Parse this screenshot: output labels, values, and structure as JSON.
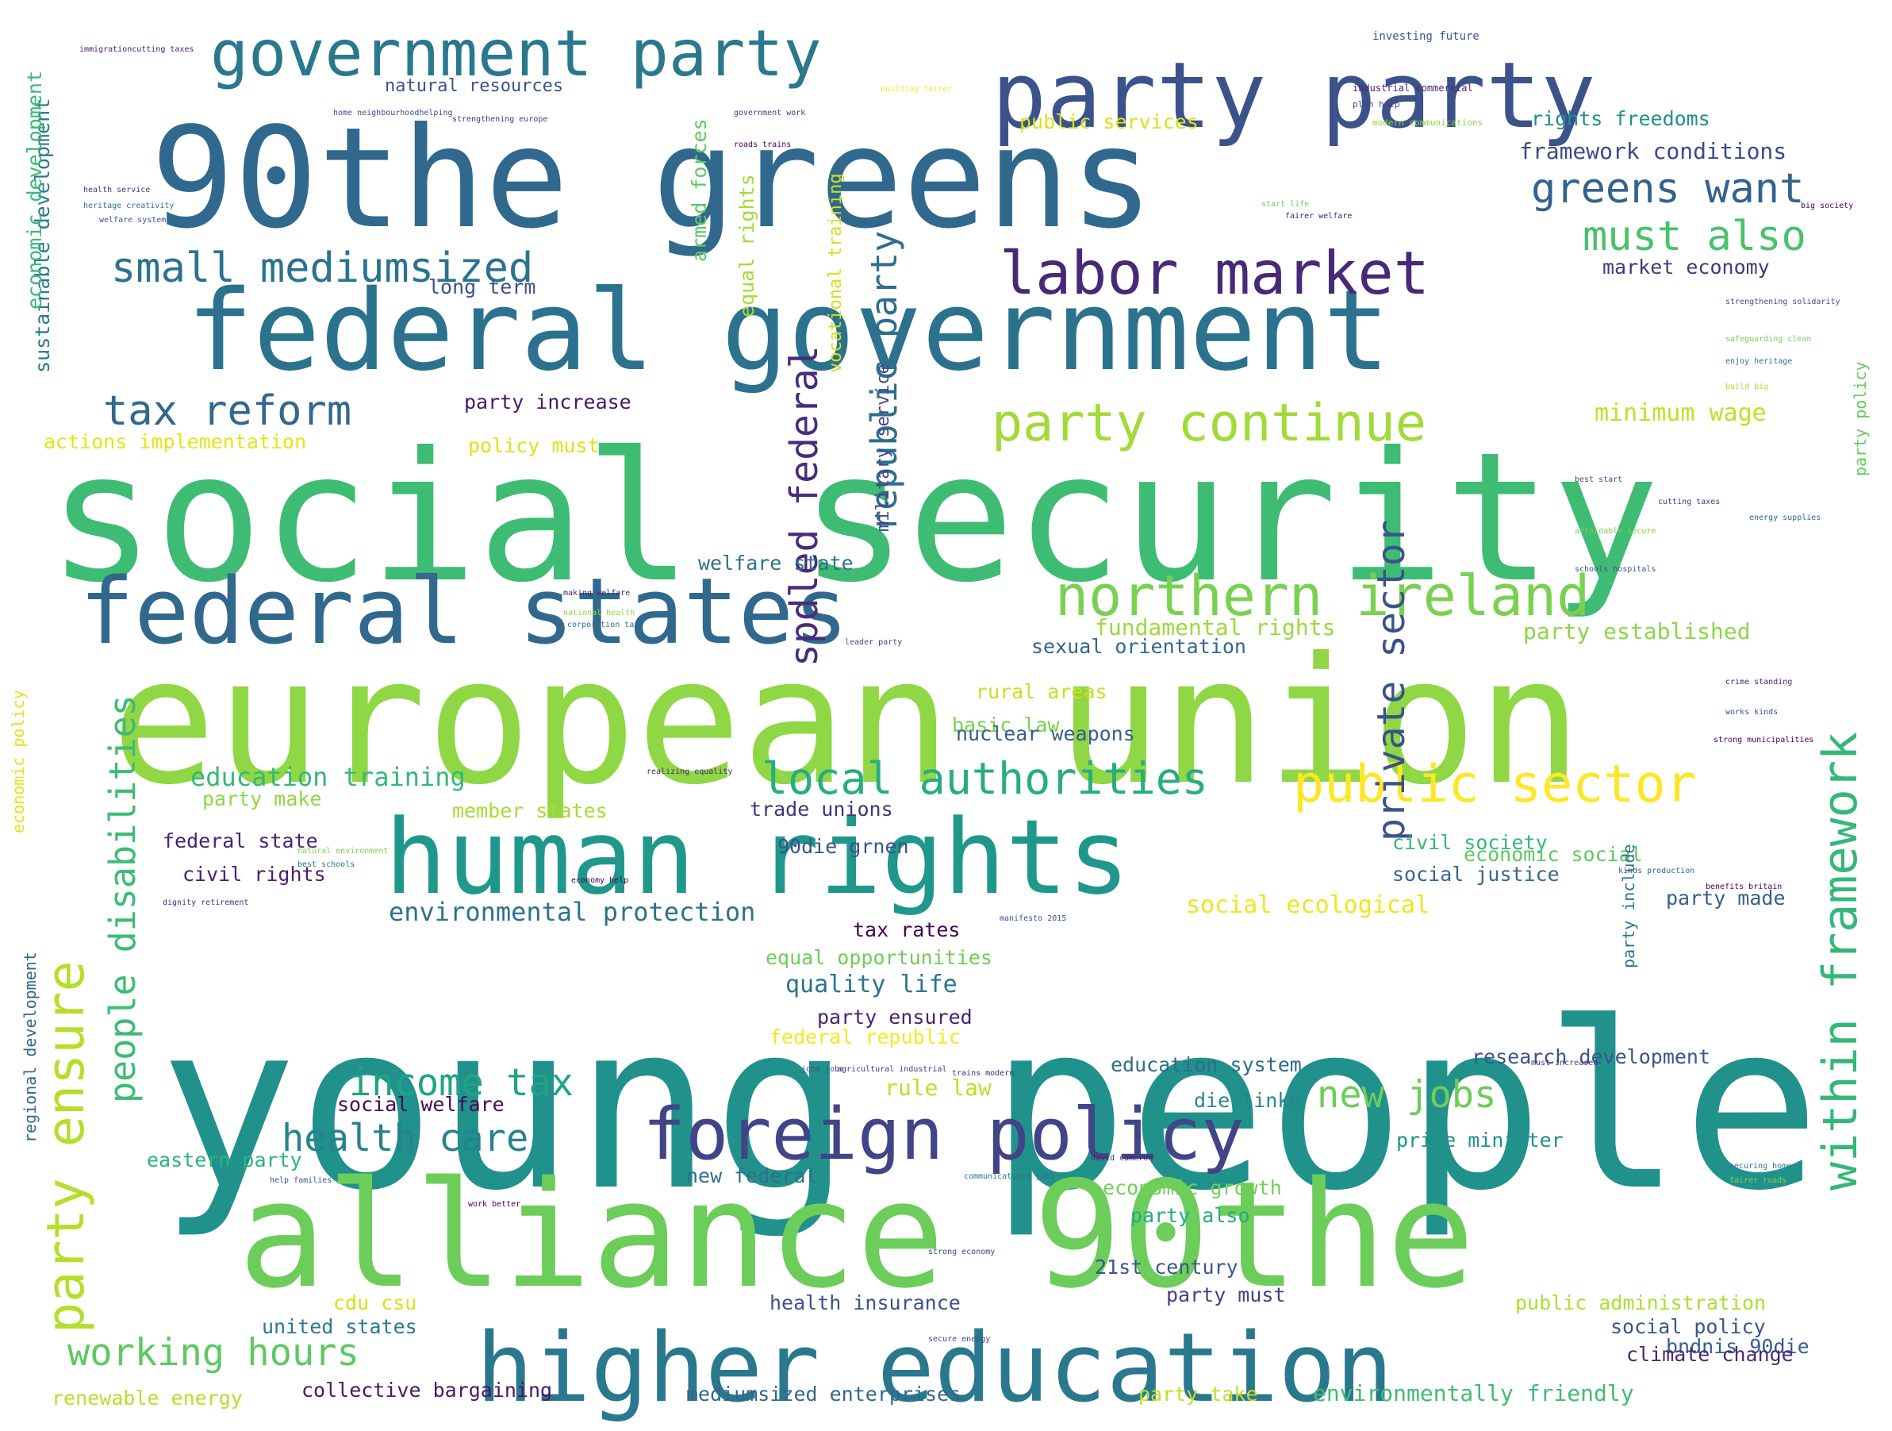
{
  "wordcloud": {
    "colormap": "viridis",
    "background": "#ffffff",
    "phrases": [
      {
        "text": "young people",
        "color": "#21918c"
      },
      {
        "text": "social security",
        "color": "#3fbc73"
      },
      {
        "text": "european union",
        "color": "#8fd744"
      },
      {
        "text": "alliance 90the",
        "color": "#6ccd5a"
      },
      {
        "text": "90the greens",
        "color": "#31688e"
      },
      {
        "text": "federal government",
        "color": "#2c728e"
      },
      {
        "text": "human rights",
        "color": "#1f988b"
      },
      {
        "text": "higher education",
        "color": "#2a788e"
      },
      {
        "text": "party party",
        "color": "#3b528b"
      },
      {
        "text": "federal states",
        "color": "#31688e"
      },
      {
        "text": "foreign policy",
        "color": "#414487"
      },
      {
        "text": "government party",
        "color": "#2a788e"
      },
      {
        "text": "labor market",
        "color": "#482878"
      },
      {
        "text": "northern ireland",
        "color": "#7ad151"
      },
      {
        "text": "party continue",
        "color": "#a2da37"
      },
      {
        "text": "public sector",
        "color": "#fde725"
      },
      {
        "text": "local authorities",
        "color": "#27ad81"
      },
      {
        "text": "small mediumsized",
        "color": "#2c728e"
      },
      {
        "text": "tax reform",
        "color": "#31688e"
      },
      {
        "text": "greens want",
        "color": "#33638d"
      },
      {
        "text": "must also",
        "color": "#4ac16d"
      },
      {
        "text": "within framework",
        "color": "#35b779"
      },
      {
        "text": "party ensure",
        "color": "#b5de2b"
      },
      {
        "text": "republic party",
        "color": "#2e6e8e"
      },
      {
        "text": "spdled federal",
        "color": "#472d7b"
      },
      {
        "text": "private sector",
        "color": "#3b528b"
      },
      {
        "text": "income tax",
        "color": "#20a486"
      },
      {
        "text": "health care",
        "color": "#25838e"
      },
      {
        "text": "working hours",
        "color": "#5ec962"
      },
      {
        "text": "new jobs",
        "color": "#6ccd5a"
      },
      {
        "text": "people disabilities",
        "color": "#3dbc74"
      },
      {
        "text": "education training",
        "color": "#35b779"
      },
      {
        "text": "environmental protection",
        "color": "#2c728e"
      },
      {
        "text": "minimum wage",
        "color": "#c2df23"
      },
      {
        "text": "fundamental rights",
        "color": "#9bd93c"
      },
      {
        "text": "party established",
        "color": "#8bd646"
      },
      {
        "text": "sexual orientation",
        "color": "#31688e"
      },
      {
        "text": "rural areas",
        "color": "#c8e020"
      },
      {
        "text": "basic law",
        "color": "#7ad151"
      },
      {
        "text": "nuclear weapons",
        "color": "#355f8d"
      },
      {
        "text": "welfare state",
        "color": "#2c728e"
      },
      {
        "text": "framework conditions",
        "color": "#3e4989"
      },
      {
        "text": "rights freedoms",
        "color": "#218f8d"
      },
      {
        "text": "market economy",
        "color": "#453781"
      },
      {
        "text": "public services",
        "color": "#d8e219"
      },
      {
        "text": "natural resources",
        "color": "#3b528b"
      },
      {
        "text": "armed forces",
        "color": "#5ec962"
      },
      {
        "text": "equal rights",
        "color": "#a5db36"
      },
      {
        "text": "vocational training",
        "color": "#d2e21b"
      },
      {
        "text": "military service",
        "color": "#404688"
      },
      {
        "text": "long term",
        "color": "#3b528b"
      },
      {
        "text": "party increase",
        "color": "#48186a"
      },
      {
        "text": "policy must",
        "color": "#dde318"
      },
      {
        "text": "actions implementation",
        "color": "#e5e419"
      },
      {
        "text": "sustainable development",
        "color": "#2a788e"
      },
      {
        "text": "economic development",
        "color": "#3aba76"
      },
      {
        "text": "party make",
        "color": "#8fd744"
      },
      {
        "text": "member states",
        "color": "#a8db34"
      },
      {
        "text": "trade unions",
        "color": "#46327e"
      },
      {
        "text": "federal state",
        "color": "#482475"
      },
      {
        "text": "civil rights",
        "color": "#481f70"
      },
      {
        "text": "civil society",
        "color": "#35b779"
      },
      {
        "text": "90die grnen",
        "color": "#3b528b"
      },
      {
        "text": "economic social",
        "color": "#5ec962"
      },
      {
        "text": "social justice",
        "color": "#31688e"
      },
      {
        "text": "party made",
        "color": "#355f8d"
      },
      {
        "text": "social ecological",
        "color": "#f1e51d"
      },
      {
        "text": "tax rates",
        "color": "#440154"
      },
      {
        "text": "equal opportunities",
        "color": "#6ece58"
      },
      {
        "text": "quality life",
        "color": "#2c728e"
      },
      {
        "text": "party ensured",
        "color": "#482475"
      },
      {
        "text": "federal republic",
        "color": "#f8e621"
      },
      {
        "text": "education system",
        "color": "#2f6c8e"
      },
      {
        "text": "research development",
        "color": "#3a548c"
      },
      {
        "text": "rule law",
        "color": "#bddf26"
      },
      {
        "text": "social welfare",
        "color": "#46085c"
      },
      {
        "text": "die linke",
        "color": "#24878e"
      },
      {
        "text": "prime minister",
        "color": "#20928c"
      },
      {
        "text": "eastern party",
        "color": "#2eb37c"
      },
      {
        "text": "new federal",
        "color": "#2d718e"
      },
      {
        "text": "economic growth",
        "color": "#73d056"
      },
      {
        "text": "party also",
        "color": "#24aa83"
      },
      {
        "text": "21st century",
        "color": "#38588c"
      },
      {
        "text": "party must",
        "color": "#424086"
      },
      {
        "text": "health insurance",
        "color": "#3b528b"
      },
      {
        "text": "cdu csu",
        "color": "#d5e21a"
      },
      {
        "text": "united states",
        "color": "#2a788e"
      },
      {
        "text": "public administration",
        "color": "#b0dd2f"
      },
      {
        "text": "social policy",
        "color": "#39568c"
      },
      {
        "text": "bndnis 90die",
        "color": "#355f8d"
      },
      {
        "text": "climate change",
        "color": "#482878"
      },
      {
        "text": "renewable energy",
        "color": "#b8de29"
      },
      {
        "text": "collective bargaining",
        "color": "#481668"
      },
      {
        "text": "mediumsized enterprises",
        "color": "#31688e"
      },
      {
        "text": "party take",
        "color": "#c0df25"
      },
      {
        "text": "environmentally friendly",
        "color": "#3fbc73"
      },
      {
        "text": "regional development",
        "color": "#31688e"
      },
      {
        "text": "economic policy",
        "color": "#e2e418"
      },
      {
        "text": "party include",
        "color": "#2b748e"
      },
      {
        "text": "party policy",
        "color": "#65cb5e"
      },
      {
        "text": "investing future",
        "color": "#3b528b"
      },
      {
        "text": "industrial commercial",
        "color": "#482374"
      },
      {
        "text": "plan help",
        "color": "#404688"
      },
      {
        "text": "modern communications",
        "color": "#8fd744"
      },
      {
        "text": "immigrationcutting taxes",
        "color": "#482173"
      },
      {
        "text": "home neighbourhoodhelping",
        "color": "#3e4a89"
      },
      {
        "text": "strengthening europe",
        "color": "#443983"
      },
      {
        "text": "health service",
        "color": "#46327e"
      },
      {
        "text": "heritage creativity",
        "color": "#2a788e"
      },
      {
        "text": "welfare system",
        "color": "#3b528b"
      },
      {
        "text": "government work",
        "color": "#414487"
      },
      {
        "text": "roads trains",
        "color": "#440154"
      },
      {
        "text": "building fairer",
        "color": "#fde725"
      },
      {
        "text": "start life",
        "color": "#6ccd5a"
      },
      {
        "text": "fairer welfare",
        "color": "#482475"
      },
      {
        "text": "big society",
        "color": "#440154"
      },
      {
        "text": "strengthening solidarity",
        "color": "#3b528b"
      },
      {
        "text": "safeguarding clean",
        "color": "#73d056"
      },
      {
        "text": "enjoy heritage",
        "color": "#2c728e"
      },
      {
        "text": "build big",
        "color": "#b5de2b"
      },
      {
        "text": "best start",
        "color": "#404688"
      },
      {
        "text": "cutting taxes",
        "color": "#453781"
      },
      {
        "text": "affordable secure",
        "color": "#7ad151"
      },
      {
        "text": "energy supplies",
        "color": "#31688e"
      },
      {
        "text": "schools hospitals",
        "color": "#3b528b"
      },
      {
        "text": "making welfare",
        "color": "#482878"
      },
      {
        "text": "national health",
        "color": "#8fd744"
      },
      {
        "text": "corporation tax",
        "color": "#2c728e"
      },
      {
        "text": "leader party",
        "color": "#414487"
      },
      {
        "text": "crime standing",
        "color": "#482374"
      },
      {
        "text": "works kinds",
        "color": "#3b528b"
      },
      {
        "text": "strong municipalities",
        "color": "#440154"
      },
      {
        "text": "realizing equality",
        "color": "#482878"
      },
      {
        "text": "natural environment",
        "color": "#7ad151"
      },
      {
        "text": "best schools",
        "color": "#2c728e"
      },
      {
        "text": "economy help",
        "color": "#440154"
      },
      {
        "text": "dignity retirement",
        "color": "#46327e"
      },
      {
        "text": "kinds production",
        "color": "#31688e"
      },
      {
        "text": "benefits britain",
        "color": "#440154"
      },
      {
        "text": "manifesto 2015",
        "color": "#3b528b"
      },
      {
        "text": "david cameron",
        "color": "#482173"
      },
      {
        "text": "jobs jobs",
        "color": "#3b528b"
      },
      {
        "text": "agricultural industrial",
        "color": "#453781"
      },
      {
        "text": "trains modern",
        "color": "#482878"
      },
      {
        "text": "communications jobs",
        "color": "#2c728e"
      },
      {
        "text": "help families",
        "color": "#3b528b"
      },
      {
        "text": "strong economy",
        "color": "#404688"
      },
      {
        "text": "secure energy",
        "color": "#3e4a89"
      },
      {
        "text": "work better",
        "color": "#440154"
      },
      {
        "text": "securing home",
        "color": "#2a788e"
      },
      {
        "text": "fairer roads",
        "color": "#7ad151"
      },
      {
        "text": "must increased",
        "color": "#453781"
      },
      {
        "text": "enhancing natural",
        "color": "#482878"
      },
      {
        "text": "production must",
        "color": "#2c728e"
      }
    ]
  }
}
